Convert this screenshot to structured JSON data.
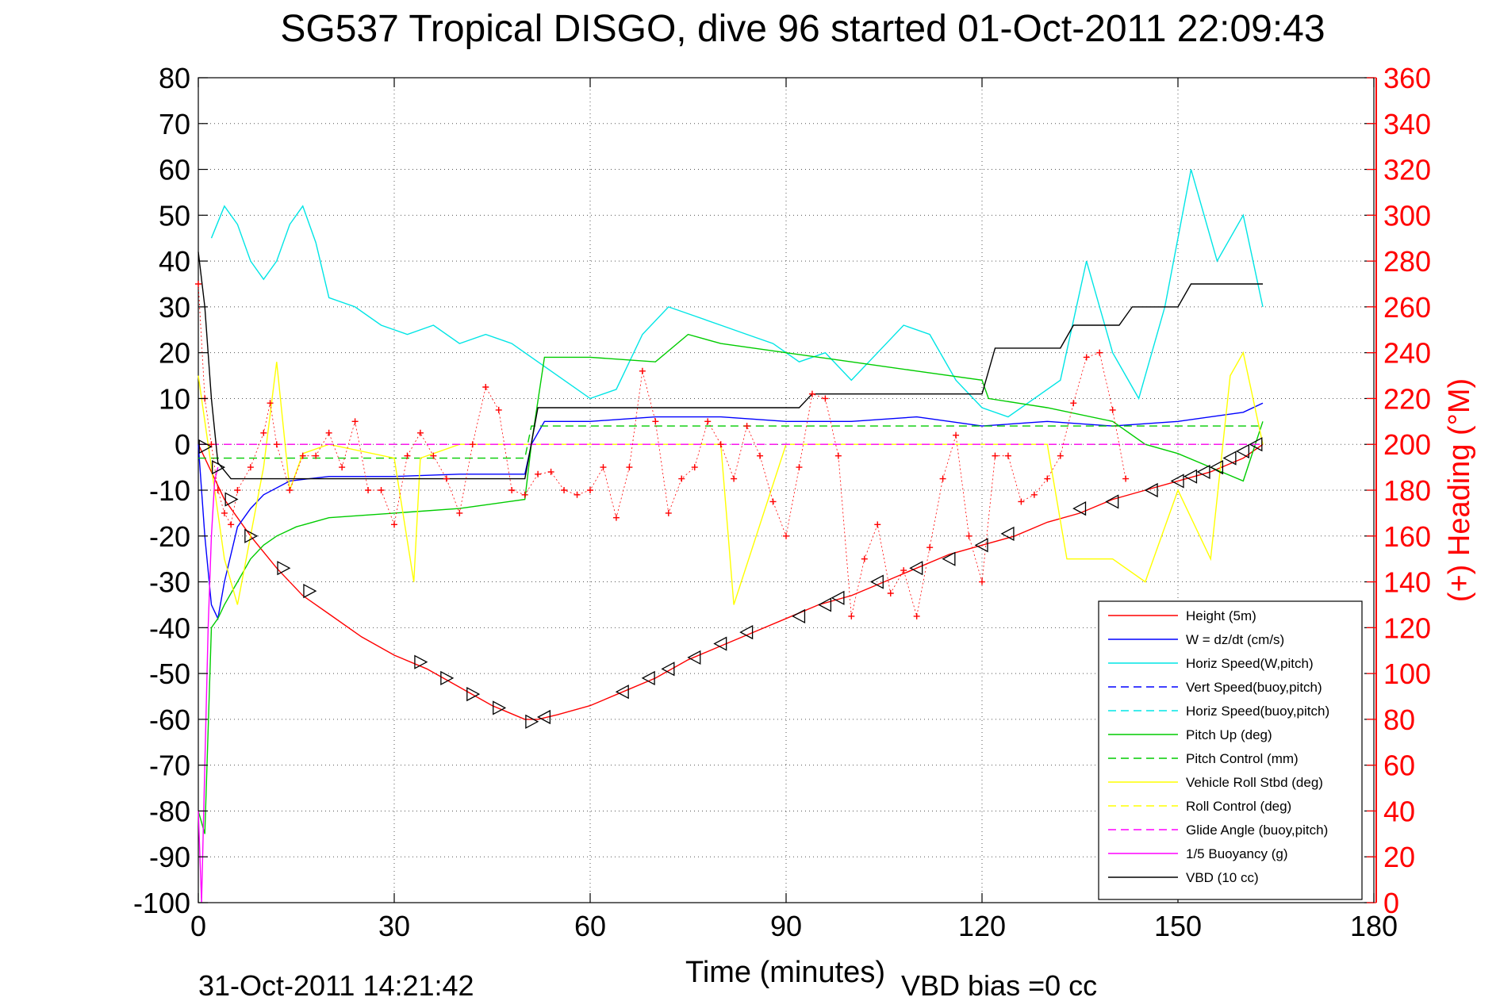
{
  "chart_data": {
    "type": "line",
    "title": "SG537 Tropical DISGO, dive 96 started 01-Oct-2011 22:09:43",
    "xlabel": "Time (minutes)",
    "ylabel_right": "(+) Heading (°M)",
    "footer_date": "31-Oct-2011 14:21:42",
    "footer_vbd": "VBD bias =0 cc",
    "xlim": [
      0,
      180
    ],
    "ylim": [
      -100,
      80
    ],
    "ylim_right": [
      0,
      360
    ],
    "xticks": [
      0,
      30,
      60,
      90,
      120,
      150,
      180
    ],
    "yticks": [
      80,
      70,
      60,
      50,
      40,
      30,
      20,
      10,
      0,
      -10,
      -20,
      -30,
      -40,
      -50,
      -60,
      -70,
      -80,
      -90,
      -100
    ],
    "yticks_right": [
      360,
      340,
      320,
      300,
      280,
      260,
      240,
      220,
      200,
      180,
      160,
      140,
      120,
      100,
      80,
      60,
      40,
      20,
      0
    ],
    "grid": true,
    "legend_position": "bottom-right",
    "legend": [
      {
        "label": "Height (5m)",
        "color": "#ff0000",
        "dash": "solid"
      },
      {
        "label": "W = dz/dt (cm/s)",
        "color": "#0000ff",
        "dash": "solid"
      },
      {
        "label": "Horiz Speed(W,pitch)",
        "color": "#00e5e5",
        "dash": "solid"
      },
      {
        "label": "Vert Speed(buoy,pitch)",
        "color": "#0000ff",
        "dash": "dashed"
      },
      {
        "label": "Horiz Speed(buoy,pitch)",
        "color": "#00e5e5",
        "dash": "dashed"
      },
      {
        "label": "Pitch Up (deg)",
        "color": "#00cc00",
        "dash": "solid"
      },
      {
        "label": "Pitch Control (mm)",
        "color": "#00cc00",
        "dash": "dashed"
      },
      {
        "label": "Vehicle Roll Stbd (deg)",
        "color": "#ffff00",
        "dash": "solid"
      },
      {
        "label": "Roll Control (deg)",
        "color": "#ffff00",
        "dash": "dashed"
      },
      {
        "label": "Glide Angle (buoy,pitch)",
        "color": "#ff00ff",
        "dash": "dashed"
      },
      {
        "label": "1/5 Buoyancy (g)",
        "color": "#ff00ff",
        "dash": "solid"
      },
      {
        "label": "VBD (10 cc)",
        "color": "#000000",
        "dash": "solid"
      }
    ],
    "series": [
      {
        "name": "Height (5m)",
        "color": "#ff0000",
        "x": [
          0,
          2,
          4,
          8,
          12,
          16,
          20,
          25,
          30,
          35,
          40,
          45,
          50,
          52,
          55,
          60,
          65,
          70,
          75,
          80,
          85,
          90,
          95,
          100,
          105,
          110,
          115,
          120,
          125,
          130,
          135,
          140,
          145,
          150,
          155,
          160,
          163
        ],
        "y": [
          0,
          -6,
          -12,
          -20,
          -27,
          -33,
          -37,
          -42,
          -46,
          -49,
          -53,
          -57,
          -60,
          -60,
          -59,
          -57,
          -54,
          -51,
          -47,
          -44,
          -41,
          -38,
          -35,
          -33,
          -30,
          -27,
          -24,
          -22,
          -20,
          -17,
          -15,
          -12,
          -10,
          -8,
          -6,
          -3,
          0
        ]
      },
      {
        "name": "W = dz/dt (cm/s)",
        "color": "#0000ff",
        "x": [
          0,
          1,
          2,
          3,
          4,
          6,
          8,
          10,
          14,
          20,
          30,
          40,
          50,
          51,
          53,
          60,
          70,
          80,
          90,
          100,
          110,
          120,
          130,
          140,
          150,
          160,
          163
        ],
        "y": [
          0,
          -20,
          -35,
          -38,
          -30,
          -18,
          -14,
          -11,
          -8,
          -7,
          -7,
          -6.5,
          -6.5,
          0,
          5,
          5,
          6,
          6,
          5,
          5,
          6,
          4,
          5,
          4,
          5,
          7,
          9
        ]
      },
      {
        "name": "Horiz Speed(W,pitch)",
        "color": "#00e5e5",
        "x": [
          2,
          4,
          6,
          8,
          10,
          12,
          14,
          16,
          18,
          20,
          24,
          28,
          32,
          36,
          40,
          44,
          48,
          50,
          52,
          56,
          60,
          64,
          68,
          72,
          76,
          80,
          84,
          88,
          92,
          96,
          100,
          104,
          108,
          112,
          116,
          120,
          124,
          128,
          132,
          136,
          140,
          144,
          148,
          152,
          156,
          160,
          163
        ],
        "y": [
          45,
          52,
          48,
          40,
          36,
          40,
          48,
          52,
          44,
          32,
          30,
          26,
          24,
          26,
          22,
          24,
          22,
          20,
          18,
          14,
          10,
          12,
          24,
          30,
          28,
          26,
          24,
          22,
          18,
          20,
          14,
          20,
          26,
          24,
          14,
          8,
          6,
          10,
          14,
          40,
          20,
          10,
          30,
          60,
          40,
          50,
          30
        ]
      },
      {
        "name": "Vert Speed(buoy,pitch)",
        "color": "#0000ff",
        "dash": "dashed",
        "x": [
          0,
          163
        ],
        "y": [
          0,
          0
        ]
      },
      {
        "name": "Horiz Speed(buoy,pitch)",
        "color": "#00e5e5",
        "dash": "dashed",
        "x": [
          0,
          163
        ],
        "y": [
          0,
          0
        ]
      },
      {
        "name": "Pitch Up (deg)",
        "color": "#00cc00",
        "x": [
          0,
          1,
          2,
          3,
          4,
          6,
          8,
          10,
          12,
          15,
          20,
          30,
          40,
          50,
          51,
          53,
          60,
          70,
          75,
          80,
          90,
          100,
          110,
          120,
          121,
          130,
          140,
          145,
          150,
          155,
          160,
          163
        ],
        "y": [
          -80,
          -85,
          -40,
          -38,
          -35,
          -30,
          -25,
          -22,
          -20,
          -18,
          -16,
          -15,
          -14,
          -12,
          0,
          19,
          19,
          18,
          24,
          22,
          20,
          18,
          16,
          14,
          10,
          8,
          5,
          0,
          -2,
          -5,
          -8,
          5
        ]
      },
      {
        "name": "Pitch Control (mm)",
        "color": "#00cc00",
        "dash": "dashed",
        "x": [
          0,
          50,
          51,
          163
        ],
        "y": [
          -3,
          -3,
          4,
          4
        ]
      },
      {
        "name": "Vehicle Roll Stbd (deg)",
        "color": "#ffff00",
        "x": [
          0,
          2,
          4,
          6,
          10,
          12,
          14,
          16,
          20,
          30,
          33,
          34,
          40,
          50,
          60,
          70,
          80,
          82,
          90,
          100,
          110,
          120,
          130,
          133,
          140,
          145,
          150,
          155,
          158,
          160,
          163
        ],
        "y": [
          15,
          -5,
          -25,
          -35,
          -5,
          18,
          -10,
          -2,
          0,
          -3,
          -30,
          -3,
          0,
          0,
          0,
          0,
          0,
          -35,
          0,
          0,
          0,
          0,
          0,
          -25,
          -25,
          -30,
          -10,
          -25,
          15,
          20,
          0
        ]
      },
      {
        "name": "Roll Control (deg)",
        "color": "#ffff00",
        "dash": "dashed",
        "x": [
          0,
          163
        ],
        "y": [
          0,
          0
        ]
      },
      {
        "name": "Glide Angle (buoy,pitch)",
        "color": "#ff00ff",
        "dash": "dashed",
        "x": [
          0,
          163
        ],
        "y": [
          0,
          0
        ]
      },
      {
        "name": "1/5 Buoyancy (g)",
        "color": "#ff00ff",
        "x": [
          0,
          0.5,
          1,
          1.5,
          2,
          2.5,
          3
        ],
        "y": [
          -80,
          -100,
          -70,
          -40,
          -20,
          -8,
          -5
        ]
      },
      {
        "name": "VBD (10 cc)",
        "color": "#000000",
        "x": [
          0,
          1,
          2,
          3,
          5,
          50,
          52,
          92,
          94,
          120,
          122,
          132,
          134,
          141,
          143,
          150,
          152,
          163
        ],
        "y": [
          42,
          30,
          10,
          -4,
          -7.5,
          -7.5,
          8,
          8,
          11,
          11,
          21,
          21,
          26,
          26,
          30,
          30,
          35,
          35
        ]
      }
    ],
    "heading_series": {
      "name": "(+) Heading (°M)",
      "color": "#ff0000",
      "axis": "right",
      "x": [
        0,
        1,
        2,
        3,
        4,
        5,
        6,
        8,
        10,
        11,
        12,
        14,
        16,
        18,
        20,
        22,
        24,
        26,
        28,
        30,
        32,
        34,
        36,
        38,
        40,
        42,
        44,
        46,
        48,
        50,
        52,
        54,
        56,
        58,
        60,
        62,
        64,
        66,
        68,
        70,
        72,
        74,
        76,
        78,
        80,
        82,
        84,
        86,
        88,
        90,
        92,
        94,
        96,
        98,
        100,
        102,
        104,
        106,
        108,
        110,
        112,
        114,
        116,
        118,
        120,
        122,
        124,
        126,
        128,
        130,
        132,
        134,
        136,
        138,
        140,
        142
      ],
      "y": [
        270,
        220,
        200,
        180,
        170,
        165,
        180,
        190,
        205,
        218,
        200,
        180,
        195,
        195,
        205,
        190,
        210,
        180,
        180,
        165,
        195,
        205,
        195,
        185,
        170,
        200,
        225,
        215,
        180,
        178,
        187,
        188,
        180,
        178,
        180,
        190,
        168,
        190,
        232,
        210,
        170,
        185,
        190,
        210,
        200,
        185,
        208,
        195,
        175,
        160,
        190,
        222,
        220,
        195,
        125,
        150,
        165,
        135,
        145,
        125,
        155,
        185,
        204,
        160,
        140,
        195,
        195,
        175,
        178,
        185,
        195,
        218,
        238,
        240,
        215,
        185
      ]
    },
    "depth_markers": {
      "name": "Height (5m)",
      "color": "#000000",
      "marker": "triangle",
      "x": [
        1,
        3,
        5,
        8,
        13,
        17,
        34,
        38,
        42,
        46,
        51,
        53,
        65,
        69,
        72,
        76,
        80,
        84,
        92,
        96,
        98,
        104,
        110,
        115,
        120,
        124,
        135,
        140,
        146,
        150,
        152,
        154,
        156,
        158,
        160,
        162
      ],
      "y": [
        -0.5,
        -5,
        -12,
        -20,
        -27,
        -32,
        -47.5,
        -51,
        -54.5,
        -57.5,
        -60.5,
        -59.5,
        -54,
        -51,
        -49,
        -46.5,
        -43.5,
        -41,
        -37.5,
        -35,
        -33.5,
        -30,
        -27,
        -25,
        -22,
        -19.5,
        -14,
        -12.5,
        -10,
        -8,
        -7,
        -6,
        -5,
        -3,
        -1.5,
        0
      ]
    }
  }
}
